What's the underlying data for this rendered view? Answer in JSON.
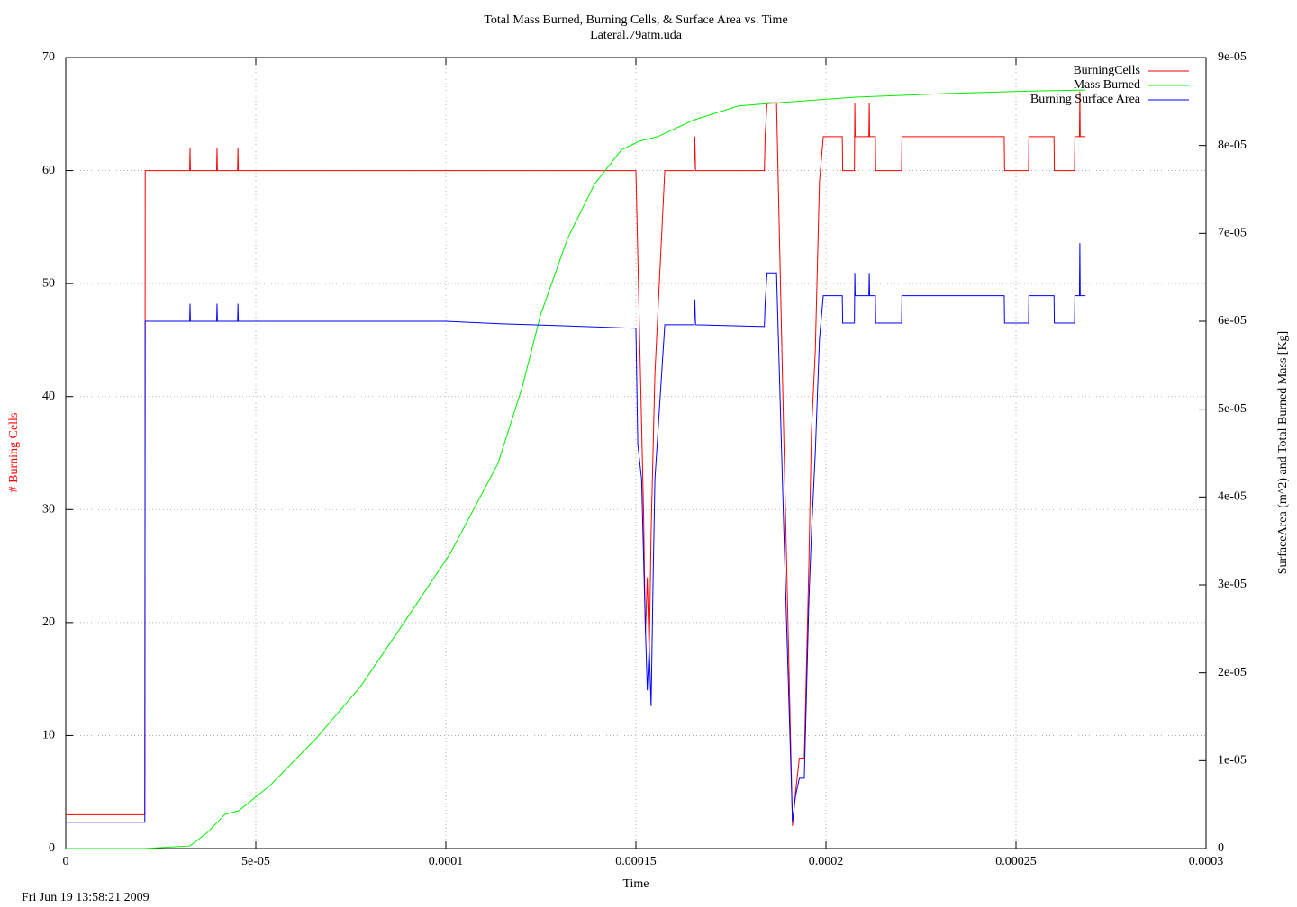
{
  "chart_data": {
    "type": "line",
    "title": "Total Mass Burned, Burning Cells, & Surface Area vs. Time",
    "subtitle": "Lateral.79atm.uda",
    "x_label": "Time",
    "y_label": "# Burning Cells",
    "y2_label": "SurfaceArea (m^2) and Total Burned Mass [Kg]",
    "timestamp": "Fri Jun 19 13:58:21 2009",
    "xlim": [
      0,
      0.0003
    ],
    "xticks": [
      0,
      {
        "value": 5e-05,
        "label": "5e-05"
      },
      0.0001,
      0.00015,
      0.0002,
      0.00025,
      0.0003
    ],
    "ylim": [
      0,
      70
    ],
    "yticks": [
      0,
      10,
      20,
      30,
      40,
      50,
      60,
      70
    ],
    "y2lim": [
      0,
      9e-05
    ],
    "y2ticks": [
      0,
      {
        "value": 1e-05,
        "label": "1e-05"
      },
      {
        "value": 2e-05,
        "label": "2e-05"
      },
      {
        "value": 3e-05,
        "label": "3e-05"
      },
      {
        "value": 4e-05,
        "label": "4e-05"
      },
      {
        "value": 5e-05,
        "label": "5e-05"
      },
      {
        "value": 6e-05,
        "label": "6e-05"
      },
      {
        "value": 7e-05,
        "label": "7e-05"
      },
      {
        "value": 8e-05,
        "label": "8e-05"
      },
      {
        "value": 9e-05,
        "label": "9e-05"
      }
    ],
    "grid": true,
    "legend": "upper right",
    "series": [
      {
        "name": "BurningCells",
        "color": "#ff0000",
        "x": [
          0,
          2.08e-05,
          2.09e-05,
          3.26e-05,
          3.27e-05,
          3.28e-05,
          3.97e-05,
          3.98e-05,
          3.99e-05,
          4.52e-05,
          4.53e-05,
          4.54e-05,
          0.00015,
          0.000151,
          0.000152,
          0.0001525,
          0.000153,
          0.0001535,
          0.000154,
          0.000155,
          0.0001576,
          0.0001653,
          0.0001655,
          0.0001657,
          0.0001838,
          0.000184,
          0.0001845,
          0.000187,
          0.000189,
          0.0001912,
          0.000192,
          0.000193,
          0.0001943,
          0.0001955,
          0.0001962,
          0.0001972,
          0.0001983,
          0.0001993,
          0.0002043,
          0.0002044,
          0.0002075,
          0.0002076,
          0.0002077,
          0.0002113,
          0.0002114,
          0.0002115,
          0.000213,
          0.0002131,
          0.0002199,
          0.00022,
          0.0002469,
          0.000247,
          0.0002533,
          0.0002534,
          0.00026,
          0.0002601,
          0.0002654,
          0.0002655,
          0.0002667,
          0.0002668,
          0.0002669,
          0.0002683
        ],
        "values": [
          3,
          3,
          60,
          60,
          62,
          60,
          60,
          62,
          60,
          60,
          62,
          60,
          60,
          45,
          30,
          19,
          24,
          17,
          28,
          42,
          60,
          60,
          63,
          60,
          60,
          63,
          66,
          66,
          35,
          2,
          5,
          8,
          8,
          25,
          37,
          44,
          59,
          63,
          63,
          60,
          60,
          66,
          63,
          63,
          66,
          63,
          63,
          60,
          60,
          63,
          63,
          60,
          60,
          63,
          63,
          60,
          60,
          63,
          63,
          67,
          63,
          63
        ]
      },
      {
        "name": "Mass Burned",
        "color": "#00ee00",
        "axis": "y2",
        "x": [
          0,
          2.06e-05,
          3.27e-05,
          3.72e-05,
          4.19e-05,
          4.55e-05,
          5.38e-05,
          6.56e-05,
          7.75e-05,
          8.93e-05,
          0.0001012,
          0.0001137,
          0.0001201,
          0.0001249,
          0.000132,
          0.0001391,
          0.0001462,
          0.000151,
          0.0001557,
          0.0001652,
          0.000177,
          0.0001889,
          0.0002078,
          0.0002315,
          0.0002552,
          0.0002683
        ],
        "values": [
          0,
          0,
          3e-07,
          1.8e-06,
          3.9e-06,
          4.3e-06,
          7.2e-06,
          1.24e-05,
          1.84e-05,
          2.59e-05,
          3.36e-05,
          4.38e-05,
          5.25e-05,
          6.07e-05,
          6.94e-05,
          7.56e-05,
          7.95e-05,
          8.05e-05,
          8.1e-05,
          8.29e-05,
          8.45e-05,
          8.49e-05,
          8.55e-05,
          8.59e-05,
          8.62e-05,
          8.63e-05
        ]
      },
      {
        "name": "Burning Surface Area",
        "color": "#0000ff",
        "axis": "y2",
        "x": [
          0,
          2.08e-05,
          2.09e-05,
          3.26e-05,
          3.27e-05,
          3.28e-05,
          3.97e-05,
          3.98e-05,
          3.99e-05,
          4.52e-05,
          4.53e-05,
          4.54e-05,
          0.0001,
          0.000115,
          0.00013,
          0.00015,
          0.0001505,
          0.0001515,
          0.0001525,
          0.000153,
          0.0001535,
          0.000154,
          0.0001545,
          0.000155,
          0.0001576,
          0.0001653,
          0.0001655,
          0.0001657,
          0.0001838,
          0.000184,
          0.0001845,
          0.000187,
          0.000189,
          0.0001912,
          0.000192,
          0.000193,
          0.0001943,
          0.0001955,
          0.0001962,
          0.0001972,
          0.0001983,
          0.0001993,
          0.0002043,
          0.0002044,
          0.0002075,
          0.0002076,
          0.0002077,
          0.0002113,
          0.0002114,
          0.0002115,
          0.000213,
          0.0002131,
          0.0002199,
          0.00022,
          0.0002469,
          0.000247,
          0.0002533,
          0.0002534,
          0.00026,
          0.0002601,
          0.0002654,
          0.0002655,
          0.0002667,
          0.0002668,
          0.0002669,
          0.0002683
        ],
        "values": [
          3e-06,
          3e-06,
          6e-05,
          6e-05,
          6.2e-05,
          6e-05,
          6e-05,
          6.2e-05,
          6e-05,
          6e-05,
          6.2e-05,
          6e-05,
          6e-05,
          5.97e-05,
          5.95e-05,
          5.92e-05,
          4.6e-05,
          4.2e-05,
          2.5e-05,
          1.8e-05,
          2.3e-05,
          1.62e-05,
          3e-05,
          4.2e-05,
          5.96e-05,
          5.96e-05,
          6.25e-05,
          5.96e-05,
          5.94e-05,
          6.2e-05,
          6.55e-05,
          6.55e-05,
          3.5e-05,
          3e-06,
          6e-06,
          8e-06,
          8e-06,
          2.8e-05,
          3.6e-05,
          4.5e-05,
          5.8e-05,
          6.29e-05,
          6.29e-05,
          5.98e-05,
          5.98e-05,
          6.55e-05,
          6.29e-05,
          6.29e-05,
          6.55e-05,
          6.29e-05,
          6.29e-05,
          5.98e-05,
          5.98e-05,
          6.29e-05,
          6.29e-05,
          5.98e-05,
          5.98e-05,
          6.29e-05,
          6.29e-05,
          5.98e-05,
          5.98e-05,
          6.29e-05,
          6.29e-05,
          6.89e-05,
          6.29e-05,
          6.29e-05
        ]
      }
    ]
  }
}
